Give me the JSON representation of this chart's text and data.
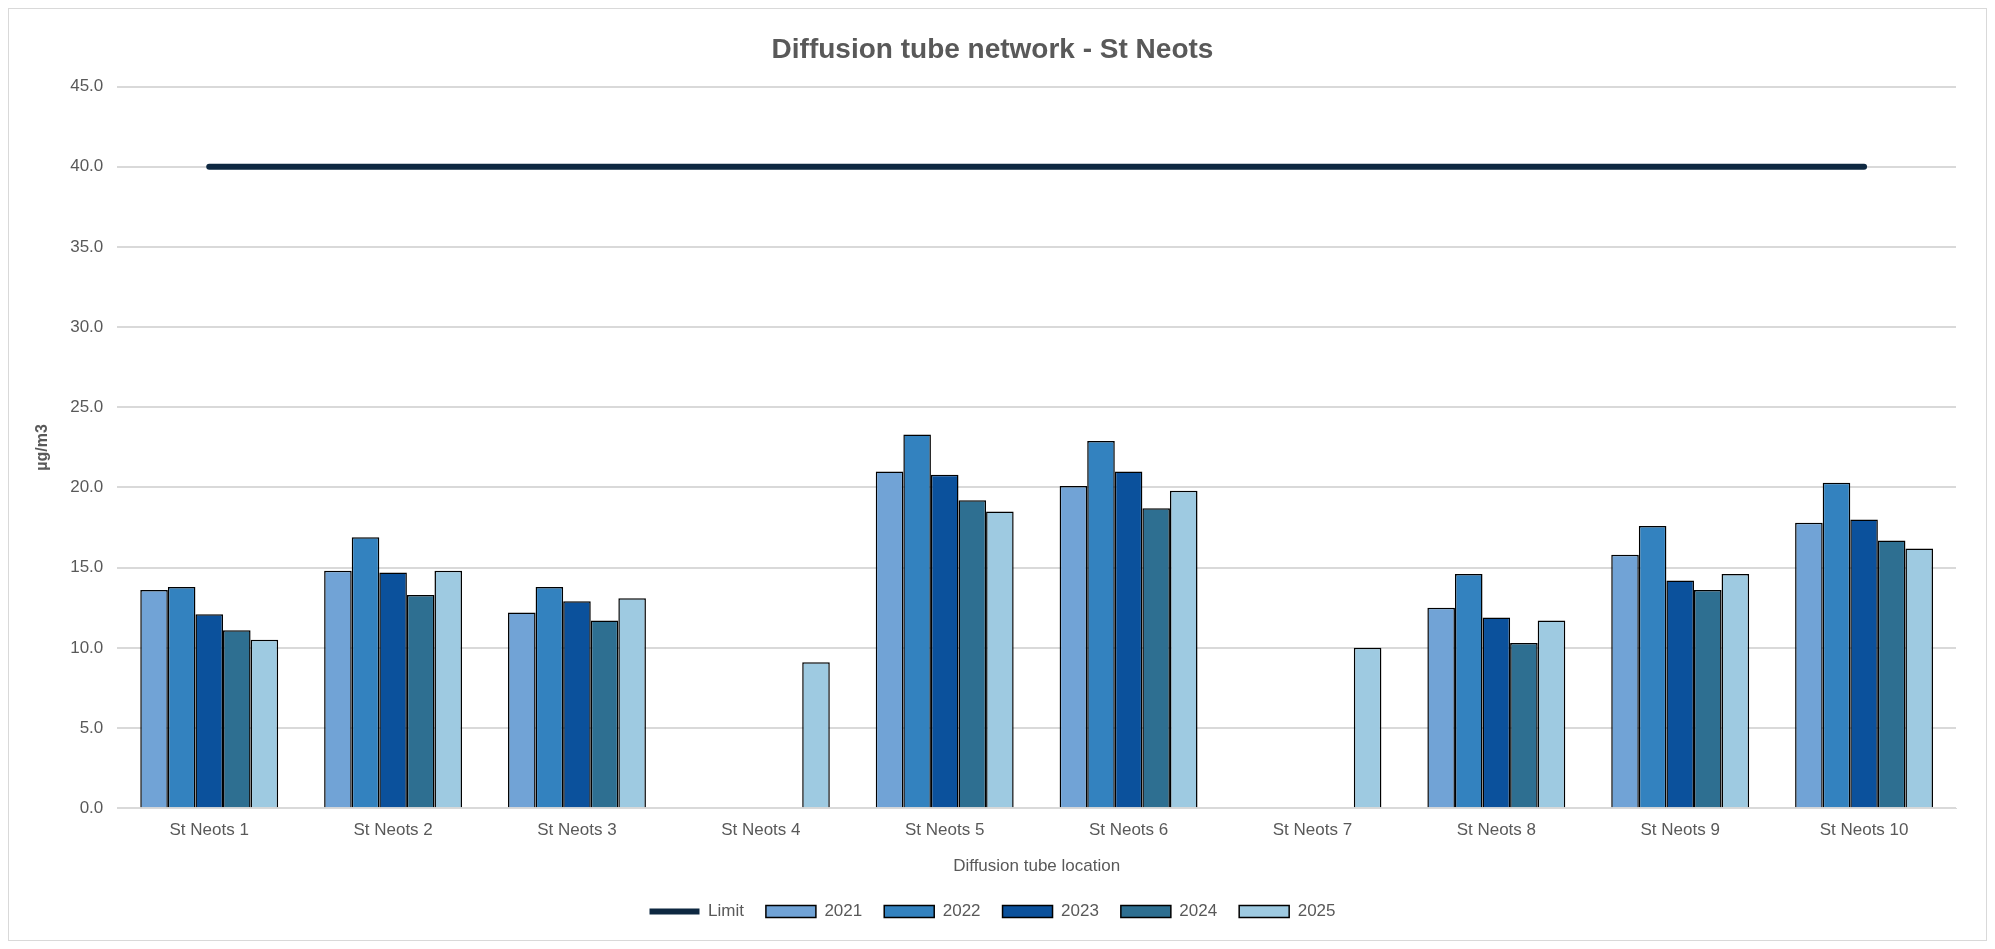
{
  "chart_data": {
    "type": "bar",
    "title": "Diffusion tube network - St Neots",
    "xlabel": "Diffusion tube location",
    "ylabel": "µg/m3",
    "categories": [
      "St Neots 1",
      "St Neots 2",
      "St Neots 3",
      "St Neots 4",
      "St Neots 5",
      "St Neots 6",
      "St Neots 7",
      "St Neots 8",
      "St Neots 9",
      "St Neots 10"
    ],
    "series": [
      {
        "name": "2021",
        "color": "#71a3d6",
        "values": [
          13.6,
          14.8,
          12.2,
          null,
          21.0,
          20.1,
          null,
          12.5,
          15.8,
          17.8
        ]
      },
      {
        "name": "2022",
        "color": "#3382bf",
        "values": [
          13.8,
          16.9,
          13.8,
          null,
          23.3,
          22.9,
          null,
          14.6,
          17.6,
          20.3
        ]
      },
      {
        "name": "2023",
        "color": "#0b519c",
        "values": [
          12.1,
          14.7,
          12.9,
          null,
          20.8,
          21.0,
          null,
          11.9,
          14.2,
          18.0
        ]
      },
      {
        "name": "2024",
        "color": "#2e6f91",
        "values": [
          11.1,
          13.3,
          11.7,
          null,
          19.2,
          18.7,
          null,
          10.3,
          13.6,
          16.7
        ]
      },
      {
        "name": "2025",
        "color": "#9ecae1",
        "values": [
          10.5,
          14.8,
          13.1,
          9.1,
          18.5,
          19.8,
          10.0,
          11.7,
          14.6,
          16.2
        ]
      },
      {
        "name": "Limit",
        "type": "line",
        "color": "#0e2841",
        "values": [
          40,
          40,
          40,
          40,
          40,
          40,
          40,
          40,
          40,
          40
        ]
      }
    ],
    "ylim": [
      0,
      45
    ],
    "yticks": [
      {
        "value": 0,
        "label": "0.0"
      },
      {
        "value": 5,
        "label": "5.0"
      },
      {
        "value": 10,
        "label": "10.0"
      },
      {
        "value": 15,
        "label": "15.0"
      },
      {
        "value": 20,
        "label": "20.0"
      },
      {
        "value": 25,
        "label": "25.0"
      },
      {
        "value": 30,
        "label": "30.0"
      },
      {
        "value": 35,
        "label": "35.0"
      },
      {
        "value": 40,
        "label": "40.0"
      },
      {
        "value": 45,
        "label": "45.0"
      }
    ],
    "grid": "y",
    "legend": "bottom",
    "marker": "none"
  }
}
